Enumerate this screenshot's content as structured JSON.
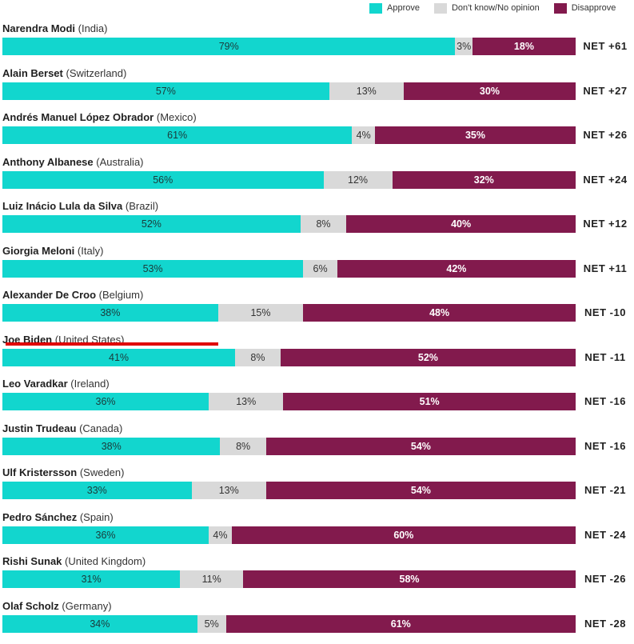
{
  "legend": [
    {
      "label": "Approve",
      "color": "#12d6ce"
    },
    {
      "label": "Don't know/No opinion",
      "color": "#d9d9d9"
    },
    {
      "label": "Disapprove",
      "color": "#821a4d"
    }
  ],
  "net_prefix": "NET",
  "highlighted": "Joe Biden",
  "chart_data": {
    "type": "bar",
    "stacked": true,
    "orientation": "horizontal",
    "xlim": [
      0,
      100
    ],
    "categories": [
      "Narendra Modi (India)",
      "Alain Berset (Switzerland)",
      "Andrés Manuel López Obrador (Mexico)",
      "Anthony Albanese (Australia)",
      "Luiz Inácio Lula da Silva (Brazil)",
      "Giorgia Meloni (Italy)",
      "Alexander De Croo (Belgium)",
      "Joe Biden (United States)",
      "Leo Varadkar (Ireland)",
      "Justin Trudeau (Canada)",
      "Ulf Kristersson (Sweden)",
      "Pedro Sánchez (Spain)",
      "Rishi Sunak (United Kingdom)",
      "Olaf Scholz (Germany)"
    ],
    "leaders": [
      {
        "name": "Narendra Modi",
        "country": "(India)",
        "net": "+61"
      },
      {
        "name": "Alain Berset",
        "country": "(Switzerland)",
        "net": "+27"
      },
      {
        "name": "Andrés Manuel López Obrador",
        "country": "(Mexico)",
        "net": "+26"
      },
      {
        "name": "Anthony Albanese",
        "country": "(Australia)",
        "net": "+24"
      },
      {
        "name": "Luiz Inácio Lula da Silva",
        "country": "(Brazil)",
        "net": "+12"
      },
      {
        "name": "Giorgia Meloni",
        "country": "(Italy)",
        "net": "+11"
      },
      {
        "name": "Alexander De Croo",
        "country": "(Belgium)",
        "net": "-10"
      },
      {
        "name": "Joe Biden",
        "country": "(United States)",
        "net": "-11"
      },
      {
        "name": "Leo Varadkar",
        "country": "(Ireland)",
        "net": "-16"
      },
      {
        "name": "Justin Trudeau",
        "country": "(Canada)",
        "net": "-16"
      },
      {
        "name": "Ulf Kristersson",
        "country": "(Sweden)",
        "net": "-21"
      },
      {
        "name": "Pedro Sánchez",
        "country": "(Spain)",
        "net": "-24"
      },
      {
        "name": "Rishi Sunak",
        "country": "(United Kingdom)",
        "net": "-26"
      },
      {
        "name": "Olaf Scholz",
        "country": "(Germany)",
        "net": "-28"
      }
    ],
    "series": [
      {
        "name": "Approve",
        "color": "#12d6ce",
        "values": [
          79,
          57,
          61,
          56,
          52,
          53,
          38,
          41,
          36,
          38,
          33,
          36,
          31,
          34
        ]
      },
      {
        "name": "Don't know/No opinion",
        "color": "#d9d9d9",
        "values": [
          3,
          13,
          4,
          12,
          8,
          6,
          15,
          8,
          13,
          8,
          13,
          4,
          11,
          5
        ]
      },
      {
        "name": "Disapprove",
        "color": "#821a4d",
        "values": [
          18,
          30,
          35,
          32,
          40,
          42,
          48,
          52,
          51,
          54,
          54,
          60,
          58,
          61
        ]
      }
    ]
  }
}
